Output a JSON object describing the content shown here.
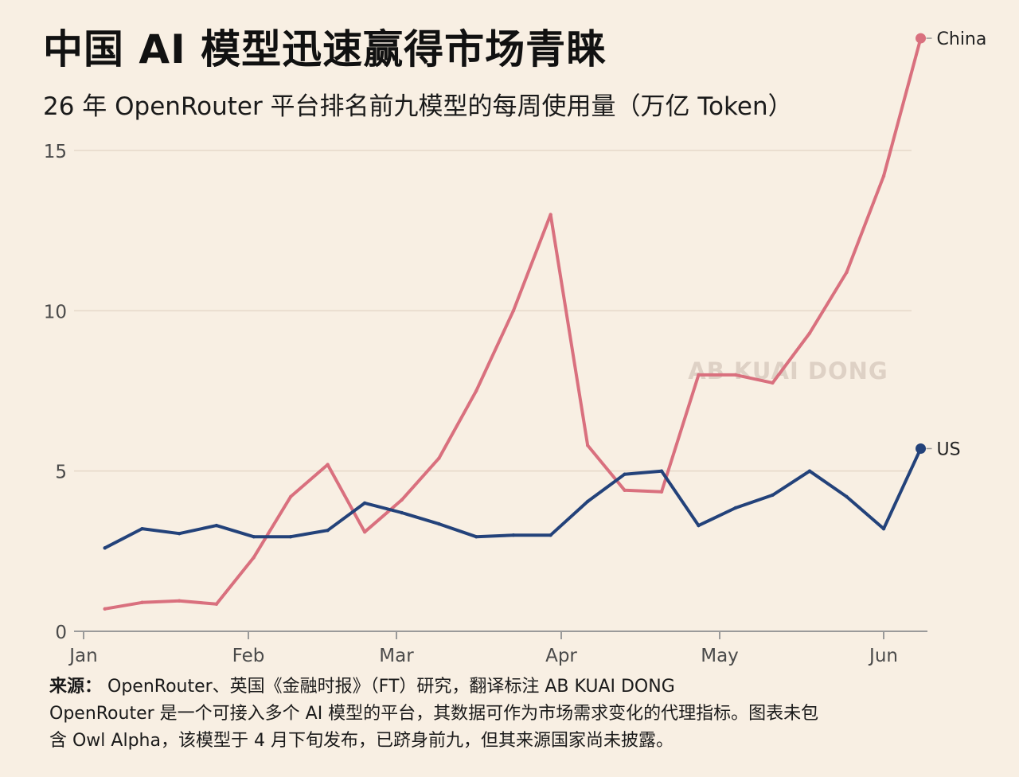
{
  "header": {
    "title": "中国 AI 模型迅速赢得市场青睐",
    "subtitle": "26 年 OpenRouter 平台排名前九模型的每周使用量（万亿 Token）"
  },
  "watermark": "AB KUAI DONG",
  "footer": {
    "source_label": "来源：",
    "source_text": "OpenRouter、英国《金融时报》（FT）研究，翻译标注 AB KUAI DONG",
    "note_line1": "OpenRouter 是一个可接入多个 AI 模型的平台，其数据可作为市场需求变化的代理指标。图表未包",
    "note_line2": "含 Owl Alpha，该模型于 4 月下旬发布，已跻身前九，但其来源国家尚未披露。"
  },
  "chart_data": {
    "type": "line",
    "x_ticks": [
      "Jan",
      "Feb",
      "Mar",
      "Apr",
      "May",
      "Jun"
    ],
    "x_tick_dates": [
      "2026-01-01",
      "2026-02-01",
      "2026-03-01",
      "2026-04-01",
      "2026-05-01",
      "2026-06-01"
    ],
    "y_ticks": [
      0,
      5,
      10,
      15
    ],
    "ylim": [
      0,
      17.5
    ],
    "grid": true,
    "series": [
      {
        "name": "China",
        "color": "#d9707e",
        "x": [
          "2026-01-05",
          "2026-01-12",
          "2026-01-19",
          "2026-01-26",
          "2026-02-02",
          "2026-02-09",
          "2026-02-16",
          "2026-02-23",
          "2026-03-02",
          "2026-03-09",
          "2026-03-16",
          "2026-03-23",
          "2026-03-30",
          "2026-04-06",
          "2026-04-13",
          "2026-04-20",
          "2026-04-27",
          "2026-05-04",
          "2026-05-11",
          "2026-05-18",
          "2026-05-25",
          "2026-06-01",
          "2026-06-08"
        ],
        "values": [
          0.7,
          0.9,
          0.95,
          0.85,
          2.3,
          4.2,
          5.2,
          3.1,
          4.1,
          5.4,
          7.5,
          10.0,
          13.0,
          5.8,
          4.4,
          4.35,
          8.0,
          8.0,
          7.75,
          9.3,
          11.2,
          14.2,
          18.5
        ]
      },
      {
        "name": "US",
        "color": "#23427a",
        "x": [
          "2026-01-05",
          "2026-01-12",
          "2026-01-19",
          "2026-01-26",
          "2026-02-02",
          "2026-02-09",
          "2026-02-16",
          "2026-02-23",
          "2026-03-02",
          "2026-03-09",
          "2026-03-16",
          "2026-03-23",
          "2026-03-30",
          "2026-04-06",
          "2026-04-13",
          "2026-04-20",
          "2026-04-27",
          "2026-05-04",
          "2026-05-11",
          "2026-05-18",
          "2026-05-25",
          "2026-06-01",
          "2026-06-08"
        ],
        "values": [
          2.6,
          3.2,
          3.05,
          3.3,
          2.95,
          2.95,
          3.15,
          4.0,
          3.7,
          3.35,
          2.95,
          3.0,
          3.0,
          4.05,
          4.9,
          5.0,
          3.3,
          3.85,
          4.25,
          5.0,
          4.2,
          3.2,
          5.7
        ]
      }
    ]
  }
}
